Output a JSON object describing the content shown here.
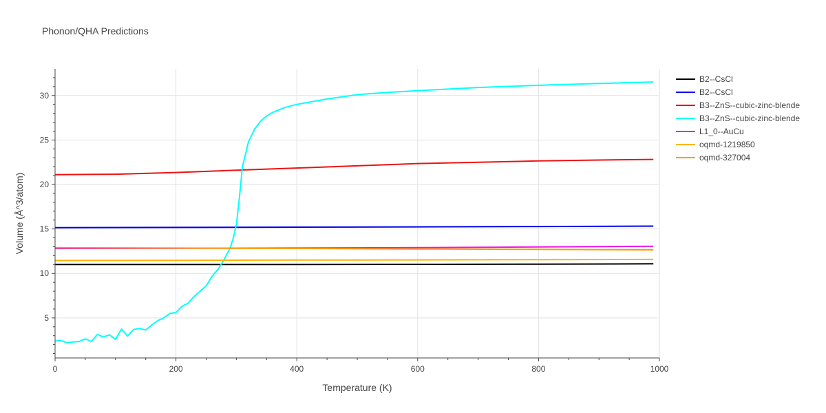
{
  "chart_data": {
    "type": "line",
    "title": "Phonon/QHA Predictions",
    "xlabel": "Temperature (K)",
    "ylabel": "Volume (Å^3/atom)",
    "xlim": [
      0,
      1000
    ],
    "ylim": [
      0.5,
      33
    ],
    "xticks": [
      0,
      200,
      400,
      600,
      800,
      1000
    ],
    "yticks": [
      5,
      10,
      15,
      20,
      25,
      30
    ],
    "grid": true,
    "legend_position": "right",
    "series": [
      {
        "name": "B2--CsCl",
        "color": "#000000",
        "x": [
          0,
          200,
          400,
          600,
          800,
          990
        ],
        "y": [
          11.0,
          11.0,
          11.0,
          11.02,
          11.05,
          11.08
        ]
      },
      {
        "name": "B2--CsCl",
        "color": "#0000ee",
        "x": [
          0,
          200,
          400,
          600,
          800,
          990
        ],
        "y": [
          15.15,
          15.17,
          15.2,
          15.23,
          15.27,
          15.32
        ]
      },
      {
        "name": "B3--ZnS--cubic-zinc-blende",
        "color": "#ee1111",
        "x": [
          0,
          100,
          200,
          300,
          400,
          500,
          600,
          700,
          800,
          900,
          990
        ],
        "y": [
          21.1,
          21.15,
          21.35,
          21.6,
          21.85,
          22.1,
          22.35,
          22.5,
          22.65,
          22.75,
          22.82
        ]
      },
      {
        "name": "B3--ZnS--cubic-zinc-blende",
        "color": "#00ffff",
        "x": [
          0,
          10,
          20,
          30,
          40,
          50,
          60,
          70,
          80,
          90,
          100,
          110,
          120,
          130,
          140,
          150,
          160,
          170,
          180,
          190,
          200,
          210,
          220,
          230,
          240,
          250,
          260,
          270,
          280,
          290,
          295,
          300,
          305,
          310,
          320,
          330,
          340,
          350,
          360,
          380,
          400,
          420,
          450,
          500,
          550,
          600,
          700,
          800,
          900,
          990
        ],
        "y": [
          2.4,
          2.45,
          2.2,
          2.3,
          2.35,
          2.65,
          2.35,
          3.15,
          2.85,
          3.1,
          2.6,
          3.75,
          2.95,
          3.7,
          3.8,
          3.65,
          4.2,
          4.7,
          5.0,
          5.5,
          5.6,
          6.3,
          6.65,
          7.4,
          8.0,
          8.6,
          9.7,
          10.5,
          11.6,
          12.9,
          14.0,
          15.5,
          18.5,
          22.0,
          24.8,
          26.2,
          27.1,
          27.7,
          28.1,
          28.65,
          29.0,
          29.25,
          29.6,
          30.1,
          30.35,
          30.55,
          30.9,
          31.15,
          31.35,
          31.52
        ]
      },
      {
        "name": "L1_0--AuCu",
        "color": "#ee11ee",
        "x": [
          0,
          200,
          400,
          600,
          800,
          990
        ],
        "y": [
          12.8,
          12.82,
          12.85,
          12.9,
          12.97,
          13.05
        ]
      },
      {
        "name": "oqmd-1219850",
        "color": "#ffb300",
        "x": [
          0,
          200,
          400,
          600,
          800,
          990
        ],
        "y": [
          11.45,
          11.47,
          11.5,
          11.52,
          11.55,
          11.57
        ]
      },
      {
        "name": "oqmd-327004",
        "color": "#ff9900",
        "x": [
          0,
          200,
          400,
          600,
          800,
          990
        ],
        "y": [
          12.9,
          12.85,
          12.8,
          12.75,
          12.7,
          12.65
        ]
      }
    ]
  }
}
